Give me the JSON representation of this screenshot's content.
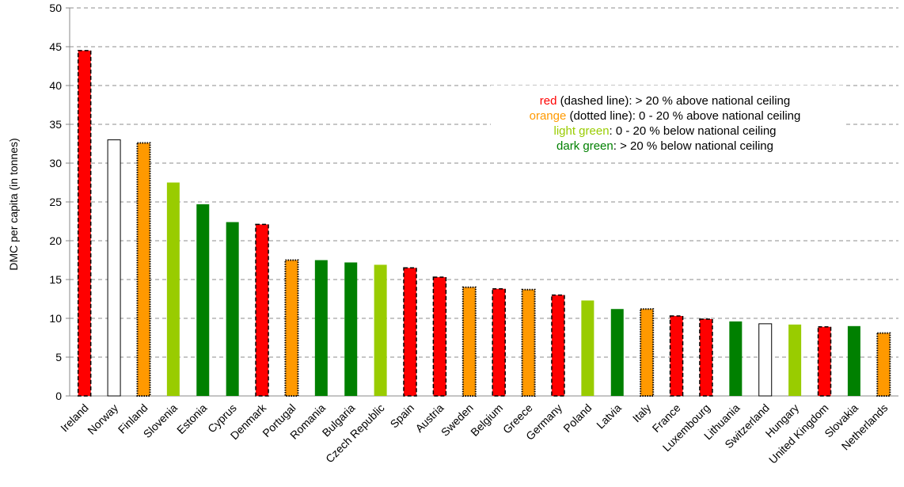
{
  "chart_data": {
    "type": "bar",
    "ylabel": "DMC per capita (in tonnes)",
    "ylim": [
      0,
      50
    ],
    "yticks": [
      0,
      5,
      10,
      15,
      20,
      25,
      30,
      35,
      40,
      45,
      50
    ],
    "grid": true,
    "categories": [
      "Ireland",
      "Norway",
      "Finland",
      "Slovenia",
      "Estonia",
      "Cyprus",
      "Denmark",
      "Portugal",
      "Romania",
      "Bulgaria",
      "Czech Republic",
      "Spain",
      "Austria",
      "Sweden",
      "Belgium",
      "Greece",
      "Germany",
      "Poland",
      "Latvia",
      "Italy",
      "France",
      "Luxembourg",
      "Lithuania",
      "Switzerland",
      "Hungary",
      "United Kingdom",
      "Slovakia",
      "Netherlands"
    ],
    "values": [
      44.5,
      33.0,
      32.6,
      27.5,
      24.7,
      22.4,
      22.1,
      17.5,
      17.5,
      17.2,
      16.9,
      16.5,
      15.3,
      14.0,
      13.8,
      13.7,
      13.0,
      12.3,
      11.2,
      11.2,
      10.3,
      9.9,
      9.6,
      9.3,
      9.2,
      8.9,
      9.0,
      8.1
    ],
    "status": [
      "red",
      "none",
      "orange",
      "lightgreen",
      "darkgreen",
      "darkgreen",
      "red",
      "orange",
      "darkgreen",
      "darkgreen",
      "lightgreen",
      "red",
      "red",
      "orange",
      "red",
      "orange",
      "red",
      "lightgreen",
      "darkgreen",
      "orange",
      "red",
      "red",
      "darkgreen",
      "none",
      "lightgreen",
      "red",
      "darkgreen",
      "orange"
    ],
    "colors": {
      "red": "#ff0000",
      "orange": "#ff9900",
      "lightgreen": "#99cc00",
      "darkgreen": "#008000",
      "none": "#ffffff"
    },
    "legend": {
      "placement": "top-right",
      "items": [
        {
          "key": "red",
          "color": "#ff0000",
          "colored": "red",
          "rest": " (dashed line): > 20 % above national ceiling"
        },
        {
          "key": "orange",
          "color": "#ff9900",
          "colored": "orange",
          "rest": " (dotted line): 0 - 20 % above national ceiling"
        },
        {
          "key": "lightgreen",
          "color": "#99cc00",
          "colored": "light green",
          "rest": ": 0 - 20 % below national ceiling"
        },
        {
          "key": "darkgreen",
          "color": "#008000",
          "colored": "dark green",
          "rest": ": > 20 % below national ceiling"
        }
      ]
    }
  }
}
